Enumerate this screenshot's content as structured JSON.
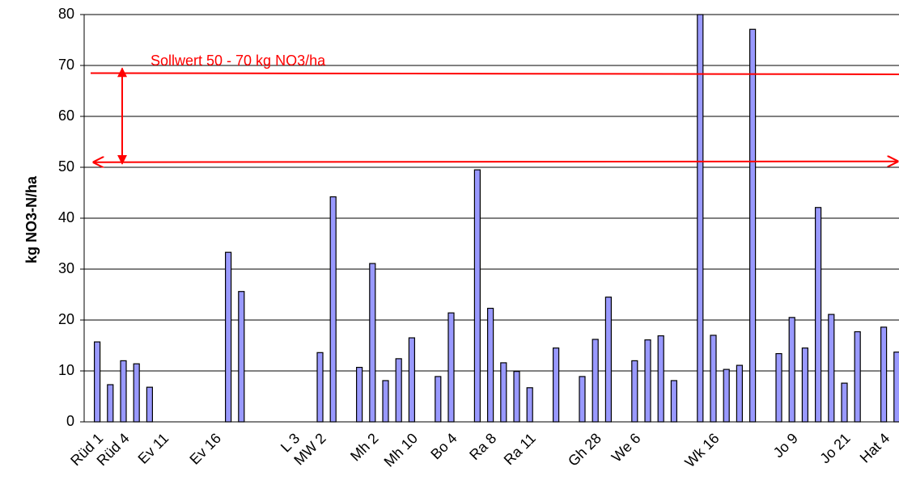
{
  "chart_data": {
    "type": "bar",
    "y_label": "kg NO3-N/ha",
    "categories": [
      "Rüd 1",
      null,
      "Rüd 4",
      null,
      null,
      "Ev 11",
      null,
      null,
      null,
      "Ev 16",
      null,
      null,
      null,
      null,
      null,
      "L 3",
      null,
      "MW 2",
      null,
      null,
      null,
      "Mh 2",
      null,
      null,
      "Mh 10",
      null,
      null,
      "Bo 4",
      null,
      null,
      "Ra 8",
      null,
      null,
      "Ra 11",
      null,
      null,
      null,
      null,
      "Gh 28",
      null,
      null,
      "We 6",
      null,
      null,
      null,
      null,
      null,
      "Wk 16",
      null,
      null,
      null,
      null,
      null,
      "Jo 9",
      null,
      null,
      null,
      "Jo 21",
      null,
      null,
      "Hat 4",
      null
    ],
    "values": [
      15.7,
      7.3,
      12,
      11.4,
      6.8,
      null,
      null,
      null,
      null,
      null,
      33.3,
      25.6,
      null,
      null,
      null,
      null,
      null,
      13.6,
      44.2,
      null,
      10.7,
      31.1,
      8.1,
      12.4,
      16.5,
      null,
      8.9,
      21.4,
      null,
      49.5,
      22.3,
      11.6,
      9.9,
      6.7,
      null,
      14.5,
      null,
      8.9,
      16.2,
      24.5,
      null,
      12,
      16.1,
      16.9,
      8.1,
      null,
      80,
      17,
      10.3,
      11.1,
      77.1,
      null,
      13.4,
      20.5,
      14.5,
      42.1,
      21.1,
      7.6,
      17.7,
      null,
      18.6,
      13.7
    ],
    "color": "#9999ff",
    "ylim": [
      0,
      80
    ],
    "yticks": [
      0,
      10,
      20,
      30,
      40,
      50,
      60,
      70,
      80
    ],
    "grid": true,
    "annotation": {
      "text": "Sollwert 50 - 70 kg NO3/ha",
      "lines": [
        68.5,
        51
      ],
      "color": "#ff0000"
    }
  }
}
